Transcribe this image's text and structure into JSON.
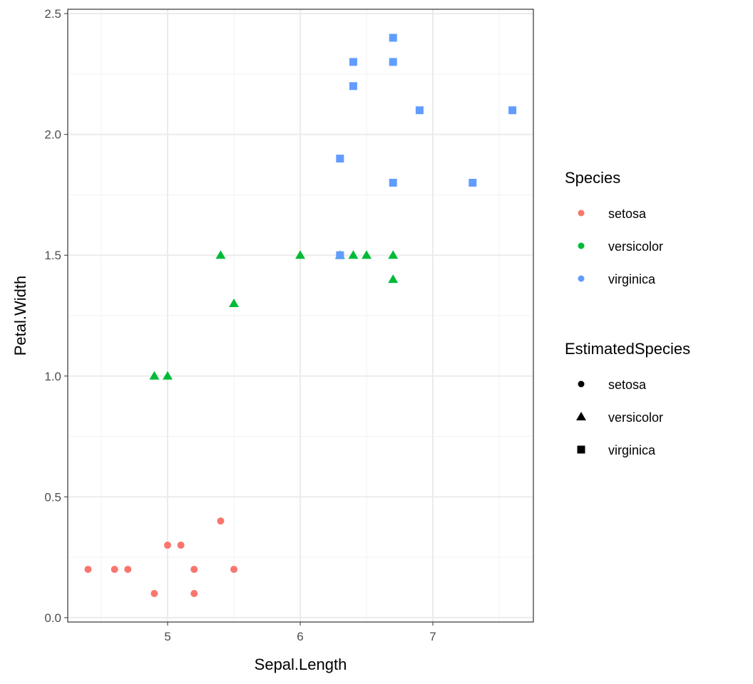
{
  "chart_data": {
    "type": "scatter",
    "xlabel": "Sepal.Length",
    "ylabel": "Petal.Width",
    "xlim": [
      4.247,
      7.758
    ],
    "ylim": [
      -0.018,
      2.518
    ],
    "xticks": [
      5,
      6,
      7
    ],
    "xtick_labels": [
      "5",
      "6",
      "7"
    ],
    "yticks": [
      0,
      0.5,
      1,
      1.5,
      2,
      2.5
    ],
    "ytick_labels": [
      "0.0",
      "0.5",
      "1.0",
      "1.5",
      "2.0",
      "2.5"
    ],
    "grid": true,
    "legend_position": "right",
    "colors": {
      "setosa": "#F8766D",
      "versicolor": "#00BA38",
      "virginica": "#619CFF"
    },
    "shapes": {
      "setosa": "circle",
      "versicolor": "triangle",
      "virginica": "square"
    },
    "legends": [
      {
        "title": "Species",
        "entries": [
          "setosa",
          "versicolor",
          "virginica"
        ]
      },
      {
        "title": "EstimatedSpecies",
        "entries": [
          "setosa",
          "versicolor",
          "virginica"
        ]
      }
    ],
    "points": [
      {
        "x": 4.4,
        "y": 0.2,
        "species": "setosa",
        "est": "setosa"
      },
      {
        "x": 4.6,
        "y": 0.2,
        "species": "setosa",
        "est": "setosa"
      },
      {
        "x": 4.7,
        "y": 0.2,
        "species": "setosa",
        "est": "setosa"
      },
      {
        "x": 4.9,
        "y": 0.1,
        "species": "setosa",
        "est": "setosa"
      },
      {
        "x": 5.0,
        "y": 0.3,
        "species": "setosa",
        "est": "setosa"
      },
      {
        "x": 5.1,
        "y": 0.3,
        "species": "setosa",
        "est": "setosa"
      },
      {
        "x": 5.2,
        "y": 0.2,
        "species": "setosa",
        "est": "setosa"
      },
      {
        "x": 5.2,
        "y": 0.1,
        "species": "setosa",
        "est": "setosa"
      },
      {
        "x": 5.4,
        "y": 0.4,
        "species": "setosa",
        "est": "setosa"
      },
      {
        "x": 5.5,
        "y": 0.2,
        "species": "setosa",
        "est": "setosa"
      },
      {
        "x": 4.9,
        "y": 1.0,
        "species": "versicolor",
        "est": "versicolor"
      },
      {
        "x": 5.0,
        "y": 1.0,
        "species": "versicolor",
        "est": "versicolor"
      },
      {
        "x": 5.4,
        "y": 1.5,
        "species": "versicolor",
        "est": "versicolor"
      },
      {
        "x": 5.5,
        "y": 1.3,
        "species": "versicolor",
        "est": "versicolor"
      },
      {
        "x": 6.0,
        "y": 1.5,
        "species": "versicolor",
        "est": "versicolor"
      },
      {
        "x": 6.3,
        "y": 1.5,
        "species": "versicolor",
        "est": "versicolor"
      },
      {
        "x": 6.4,
        "y": 1.5,
        "species": "versicolor",
        "est": "versicolor"
      },
      {
        "x": 6.5,
        "y": 1.5,
        "species": "versicolor",
        "est": "versicolor"
      },
      {
        "x": 6.7,
        "y": 1.5,
        "species": "versicolor",
        "est": "versicolor"
      },
      {
        "x": 6.7,
        "y": 1.4,
        "species": "versicolor",
        "est": "versicolor"
      },
      {
        "x": 6.3,
        "y": 1.5,
        "species": "virginica",
        "est": "virginica"
      },
      {
        "x": 6.3,
        "y": 1.9,
        "species": "virginica",
        "est": "virginica"
      },
      {
        "x": 6.4,
        "y": 2.3,
        "species": "virginica",
        "est": "virginica"
      },
      {
        "x": 6.4,
        "y": 2.2,
        "species": "virginica",
        "est": "virginica"
      },
      {
        "x": 6.7,
        "y": 2.4,
        "species": "virginica",
        "est": "virginica"
      },
      {
        "x": 6.7,
        "y": 2.3,
        "species": "virginica",
        "est": "virginica"
      },
      {
        "x": 6.7,
        "y": 1.8,
        "species": "virginica",
        "est": "virginica"
      },
      {
        "x": 6.9,
        "y": 2.1,
        "species": "virginica",
        "est": "virginica"
      },
      {
        "x": 7.3,
        "y": 1.8,
        "species": "virginica",
        "est": "virginica"
      },
      {
        "x": 7.6,
        "y": 2.1,
        "species": "virginica",
        "est": "virginica"
      }
    ]
  }
}
